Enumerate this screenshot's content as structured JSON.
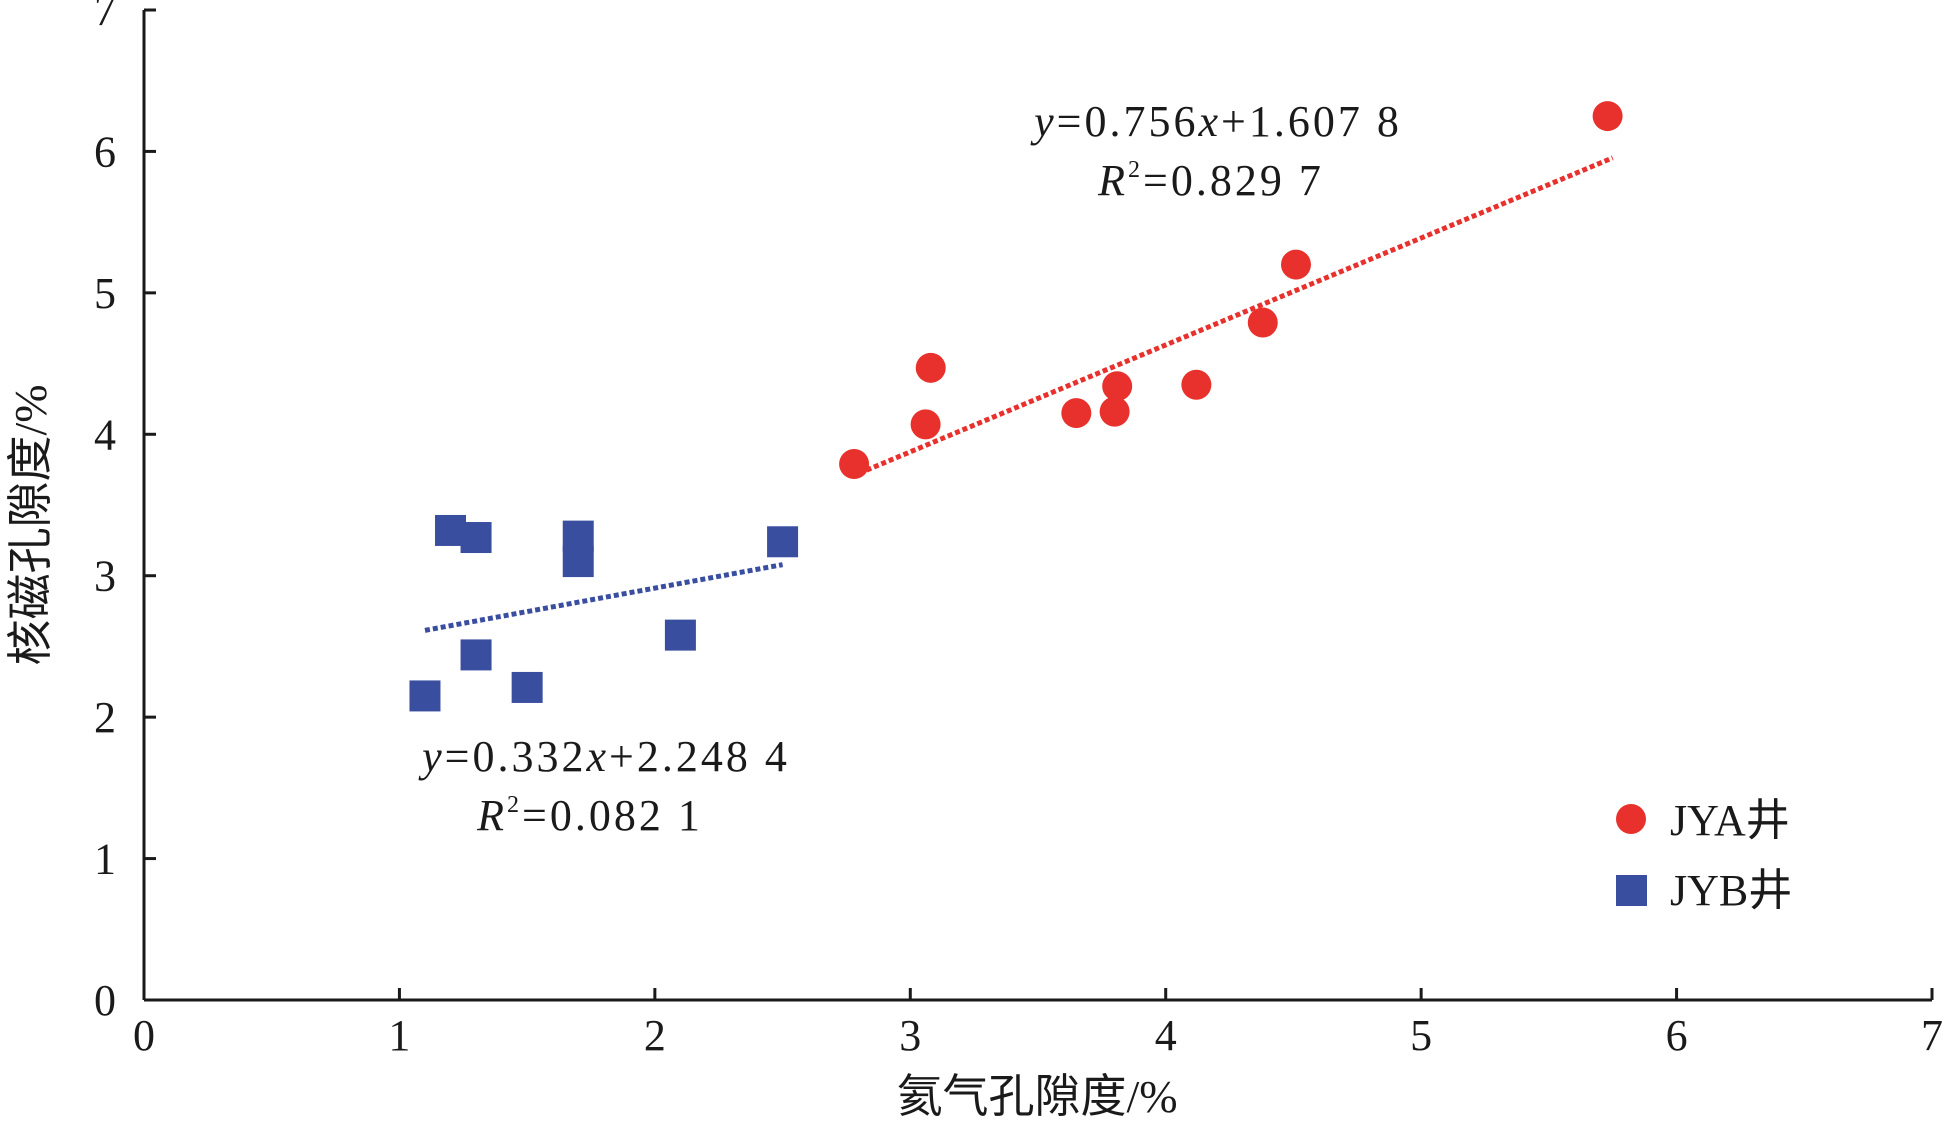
{
  "chart_data": {
    "type": "scatter",
    "xlabel": "氦气孔隙度/%",
    "ylabel": "核磁孔隙度/%",
    "xlim": [
      0,
      7
    ],
    "ylim": [
      0,
      7
    ],
    "xticks": [
      "0",
      "1",
      "2",
      "3",
      "4",
      "5",
      "6",
      "7"
    ],
    "yticks": [
      "0",
      "1",
      "2",
      "3",
      "4",
      "5",
      "6",
      "7"
    ],
    "grid": false,
    "legend_position": "bottom-right",
    "series": [
      {
        "name": "JYA井",
        "marker": "circle",
        "color": "#e8312c",
        "points": [
          {
            "x": 2.78,
            "y": 3.79
          },
          {
            "x": 3.06,
            "y": 4.07
          },
          {
            "x": 3.08,
            "y": 4.47
          },
          {
            "x": 3.65,
            "y": 4.15
          },
          {
            "x": 3.8,
            "y": 4.16
          },
          {
            "x": 3.81,
            "y": 4.34
          },
          {
            "x": 4.12,
            "y": 4.35
          },
          {
            "x": 4.38,
            "y": 4.79
          },
          {
            "x": 4.51,
            "y": 5.2
          },
          {
            "x": 5.73,
            "y": 6.25
          }
        ],
        "trendline": {
          "slope": 0.756,
          "intercept": 1.6078,
          "x_range": [
            2.8,
            5.75
          ],
          "color": "#e8312c",
          "equation_parts": [
            "y",
            "=0.756",
            "x",
            "+1.607 8"
          ],
          "r2_parts": [
            "R",
            "2",
            "=0.829 7"
          ]
        }
      },
      {
        "name": "JYB井",
        "marker": "square",
        "color": "#3a4ea0",
        "points": [
          {
            "x": 1.1,
            "y": 2.15
          },
          {
            "x": 1.2,
            "y": 3.32
          },
          {
            "x": 1.3,
            "y": 3.27
          },
          {
            "x": 1.3,
            "y": 2.44
          },
          {
            "x": 1.5,
            "y": 2.21
          },
          {
            "x": 1.7,
            "y": 3.28
          },
          {
            "x": 1.7,
            "y": 3.1
          },
          {
            "x": 2.1,
            "y": 2.58
          },
          {
            "x": 2.5,
            "y": 3.24
          }
        ],
        "trendline": {
          "slope": 0.332,
          "intercept": 2.2484,
          "x_range": [
            1.1,
            2.5
          ],
          "color": "#3a4ea0",
          "equation_parts": [
            "y",
            "=0.332",
            "x",
            "+2.248 4"
          ],
          "r2_parts": [
            "R",
            "2",
            "=0.082 1"
          ]
        }
      }
    ]
  }
}
